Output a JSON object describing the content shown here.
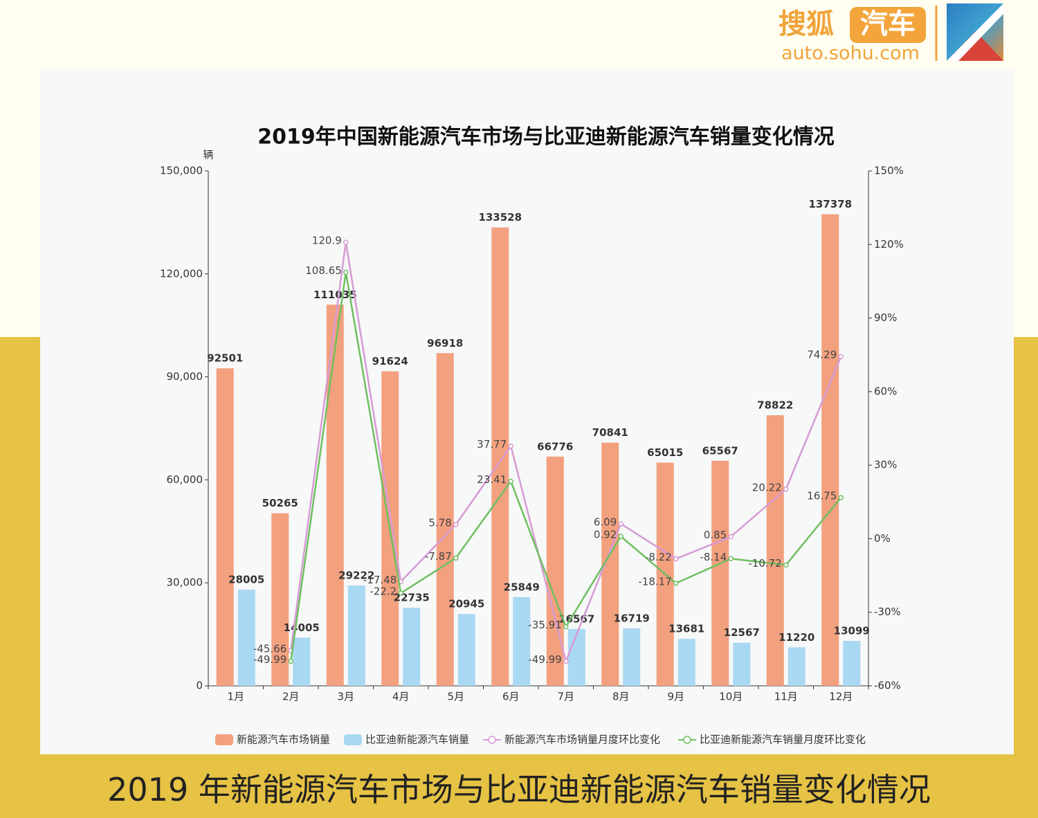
{
  "header": {
    "logo_main": "搜狐",
    "logo_badge": "汽车",
    "logo_url": "auto.sohu.com"
  },
  "caption": "2019 年新能源汽车市场与比亚迪新能源汽车销量变化情况",
  "chart_data": {
    "type": "bar",
    "title": "2019年中国新能源汽车市场与比亚迪新能源汽车销量变化情况",
    "y_label": "辆",
    "categories": [
      "1月",
      "2月",
      "3月",
      "4月",
      "5月",
      "6月",
      "7月",
      "8月",
      "9月",
      "10月",
      "11月",
      "12月"
    ],
    "series": [
      {
        "name": "新能源汽车市场销量",
        "type": "bar",
        "color": "#f3a07f",
        "values": [
          92501,
          50265,
          111035,
          91624,
          96918,
          133528,
          66776,
          70841,
          65015,
          65567,
          78822,
          137378
        ]
      },
      {
        "name": "比亚迪新能源汽车销量",
        "type": "bar",
        "color": "#a9d8f3",
        "values": [
          28005,
          14005,
          29222,
          22735,
          20945,
          25849,
          16567,
          16719,
          13681,
          12567,
          11220,
          13099
        ]
      },
      {
        "name": "新能源汽车市场销量月度环比变化",
        "type": "line",
        "axis": "y2",
        "color": "#d69bd3",
        "values": [
          null,
          -45.66,
          120.9,
          -17.48,
          5.78,
          37.77,
          -49.99,
          6.09,
          -8.22,
          0.85,
          20.22,
          74.29
        ]
      },
      {
        "name": "比亚迪新能源汽车销量月度环比变化",
        "type": "line",
        "axis": "y2",
        "color": "#6fbf60",
        "values": [
          null,
          -49.99,
          108.65,
          -22.2,
          -7.87,
          23.41,
          -35.91,
          0.92,
          -18.17,
          -8.14,
          -10.72,
          16.75
        ]
      }
    ],
    "ylim": [
      0,
      150000
    ],
    "yticks": [
      0,
      {
        "value": 30000,
        "label": "30,000"
      },
      {
        "value": 60000,
        "label": "60,000"
      },
      {
        "value": 90000,
        "label": "90,000"
      },
      {
        "value": 120000,
        "label": "120,000"
      },
      {
        "value": 150000,
        "label": "150,000"
      }
    ],
    "y2lim": [
      -60,
      150
    ],
    "y2ticks": [
      {
        "value": -60,
        "label": "-60%"
      },
      {
        "value": -30,
        "label": "-30%"
      },
      {
        "value": 0,
        "label": "0%"
      },
      {
        "value": 30,
        "label": "30%"
      },
      {
        "value": 60,
        "label": "60%"
      },
      {
        "value": 90,
        "label": "90%"
      },
      {
        "value": 120,
        "label": "120%"
      },
      {
        "value": 150,
        "label": "150%"
      }
    ],
    "legend": "bottom"
  }
}
